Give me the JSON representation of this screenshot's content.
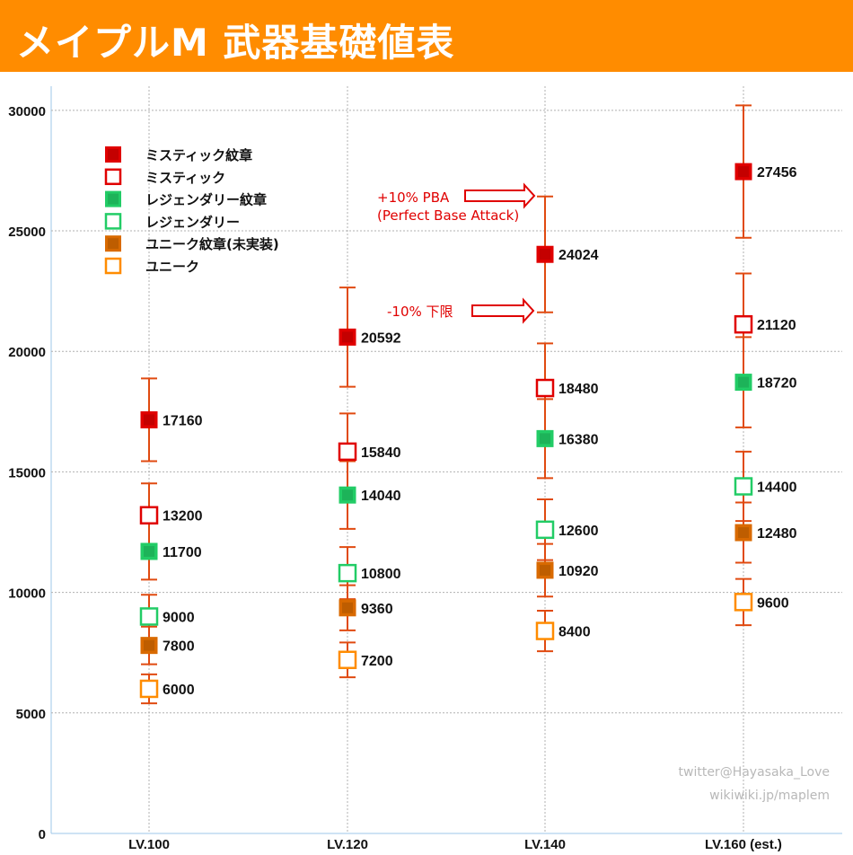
{
  "header": {
    "title": "メイプルM 武器基礎値表"
  },
  "credits": {
    "line1": "twitter@Hayasaka_Love",
    "line2": "wikiwiki.jp/maplem"
  },
  "colors": {
    "header_bg": "#ff8c00",
    "mystic": "#e00000",
    "legendary": "#22cc66",
    "unique": "#ff8c00",
    "unique_filled": "#d96a00",
    "errorbar": "#e04a10",
    "annotation": "#e00000",
    "grid": "#b0b0b0"
  },
  "chart_data": {
    "type": "scatter",
    "categories": [
      "LV.100",
      "LV.120",
      "LV.140",
      "LV.160 (est.)"
    ],
    "ylim": [
      0,
      31000
    ],
    "yticks": [
      0,
      5000,
      10000,
      15000,
      20000,
      25000,
      30000
    ],
    "error_bar": "-10% / +10%",
    "grid": "dotted",
    "legend_position": "top-left",
    "series": [
      {
        "name": "ミスティック紋章",
        "style": "filled",
        "color": "#e00000",
        "values": [
          17160,
          20592,
          24024,
          27456
        ]
      },
      {
        "name": "ミスティック",
        "style": "hollow",
        "color": "#e00000",
        "values": [
          13200,
          15840,
          18480,
          21120
        ]
      },
      {
        "name": "レジェンダリー紋章",
        "style": "filled",
        "color": "#22cc66",
        "values": [
          11700,
          14040,
          16380,
          18720
        ]
      },
      {
        "name": "レジェンダリー",
        "style": "hollow",
        "color": "#22cc66",
        "values": [
          9000,
          10800,
          12600,
          14400
        ]
      },
      {
        "name": "ユニーク紋章(未実装)",
        "style": "filled",
        "color": "#d96a00",
        "values": [
          7800,
          9360,
          10920,
          12480
        ]
      },
      {
        "name": "ユニーク",
        "style": "hollow",
        "color": "#ff8c00",
        "values": [
          6000,
          7200,
          8400,
          9600
        ]
      }
    ],
    "annotations": [
      {
        "line1": "+10% PBA",
        "line2": "(Perfect Base Attack)",
        "points_to": "upper error bar of ミスティック紋章 at LV.140"
      },
      {
        "line1": "-10% 下限",
        "points_to": "lower error bar of ミスティック紋章 at LV.140"
      }
    ]
  }
}
